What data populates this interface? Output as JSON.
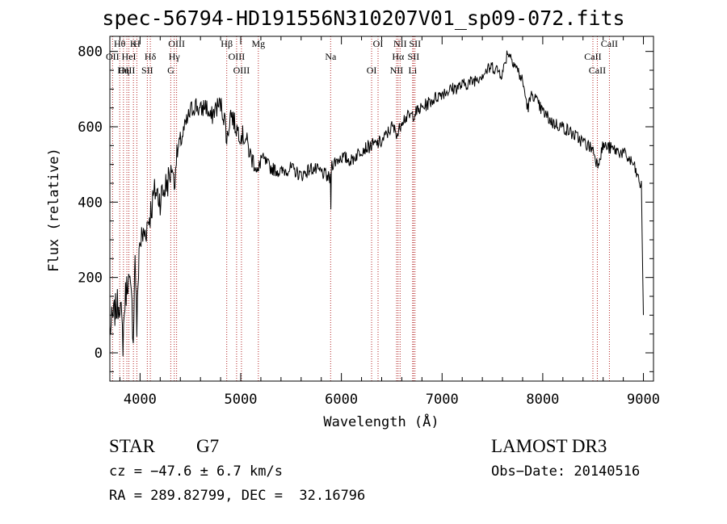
{
  "chart_data": {
    "type": "line",
    "title": "spec-56794-HD191556N310207V01_sp09-072.fits",
    "xlabel": "Wavelength (Å)",
    "ylabel": "Flux (relative)",
    "xlim": [
      3700,
      9100
    ],
    "ylim": [
      -75,
      840
    ],
    "xticks": [
      4000,
      5000,
      6000,
      7000,
      8000,
      9000
    ],
    "yticks": [
      0,
      200,
      400,
      600,
      800
    ],
    "series": [
      {
        "name": "flux",
        "x": [
          3700,
          3750,
          3800,
          3830,
          3850,
          3880,
          3900,
          3920,
          3933,
          3950,
          3968,
          3990,
          4010,
          4050,
          4100,
          4150,
          4200,
          4250,
          4300,
          4320,
          4340,
          4360,
          4400,
          4450,
          4500,
          4550,
          4600,
          4650,
          4700,
          4750,
          4800,
          4850,
          4861,
          4900,
          4950,
          5000,
          5050,
          5100,
          5150,
          5172,
          5200,
          5300,
          5400,
          5500,
          5600,
          5700,
          5800,
          5890,
          5895,
          5900,
          6000,
          6100,
          6200,
          6300,
          6400,
          6500,
          6563,
          6600,
          6700,
          6800,
          6900,
          7000,
          7100,
          7200,
          7300,
          7400,
          7500,
          7600,
          7650,
          7700,
          7800,
          7850,
          7900,
          7950,
          8000,
          8100,
          8200,
          8300,
          8400,
          8500,
          8542,
          8600,
          8700,
          8800,
          8900,
          8950,
          8980,
          9000
        ],
        "y": [
          60,
          110,
          140,
          30,
          140,
          200,
          170,
          120,
          40,
          270,
          60,
          280,
          300,
          320,
          370,
          430,
          410,
          440,
          470,
          500,
          440,
          520,
          560,
          600,
          640,
          660,
          640,
          660,
          620,
          650,
          660,
          610,
          560,
          640,
          600,
          580,
          570,
          520,
          500,
          470,
          520,
          490,
          480,
          490,
          470,
          490,
          480,
          460,
          380,
          500,
          520,
          510,
          540,
          550,
          560,
          600,
          580,
          620,
          630,
          650,
          670,
          690,
          700,
          710,
          720,
          740,
          760,
          740,
          800,
          780,
          720,
          650,
          690,
          660,
          640,
          610,
          600,
          580,
          560,
          540,
          500,
          550,
          540,
          530,
          500,
          460,
          440,
          100
        ]
      }
    ],
    "lines": [
      {
        "name": "Hθ",
        "wl": 3798,
        "pos": "top"
      },
      {
        "name": "OII",
        "wl": 3727,
        "pos": "top"
      },
      {
        "name": "OIII",
        "wl": 3869,
        "pos": "top"
      },
      {
        "name": "K",
        "wl": 3934,
        "pos": "top"
      },
      {
        "name": "HeI",
        "wl": 3889,
        "pos": "top"
      },
      {
        "name": "Hη",
        "wl": 3835,
        "pos": "top"
      },
      {
        "name": "H",
        "wl": 3968,
        "pos": "top"
      },
      {
        "name": "Hδ",
        "wl": 4102,
        "pos": "top"
      },
      {
        "name": "SII",
        "wl": 4072,
        "pos": "top"
      },
      {
        "name": "OIII",
        "wl": 4363,
        "pos": "top"
      },
      {
        "name": "Hγ",
        "wl": 4340,
        "pos": "top"
      },
      {
        "name": "G",
        "wl": 4305,
        "pos": "top"
      },
      {
        "name": "Hβ",
        "wl": 4861,
        "pos": "top"
      },
      {
        "name": "OIII",
        "wl": 4959,
        "pos": "top"
      },
      {
        "name": "OIII",
        "wl": 5007,
        "pos": "top"
      },
      {
        "name": "Mg",
        "wl": 5175,
        "pos": "top"
      },
      {
        "name": "Na",
        "wl": 5893,
        "pos": "top"
      },
      {
        "name": "OI",
        "wl": 6300,
        "pos": "top"
      },
      {
        "name": "OI",
        "wl": 6364,
        "pos": "top"
      },
      {
        "name": "Hα",
        "wl": 6563,
        "pos": "top"
      },
      {
        "name": "NII",
        "wl": 6548,
        "pos": "top"
      },
      {
        "name": "NII",
        "wl": 6583,
        "pos": "top"
      },
      {
        "name": "SII",
        "wl": 6716,
        "pos": "top"
      },
      {
        "name": "Li",
        "wl": 6708,
        "pos": "top"
      },
      {
        "name": "SII",
        "wl": 6731,
        "pos": "top"
      },
      {
        "name": "CaII",
        "wl": 8498,
        "pos": "top"
      },
      {
        "name": "CaII",
        "wl": 8542,
        "pos": "top"
      },
      {
        "name": "CaII",
        "wl": 8662,
        "pos": "top"
      }
    ]
  },
  "info": {
    "object_type": "STAR",
    "subclass": "G7",
    "survey": "LAMOST DR3",
    "cz": "cz = −47.6 ± 6.7 km/s",
    "obs_date": "Obs−Date: 20140516",
    "coords": "RA = 289.82799, DEC =  32.16796"
  },
  "colors": {
    "axis": "#000000",
    "line_marker": "#b22222",
    "spectrum": "#000000"
  }
}
